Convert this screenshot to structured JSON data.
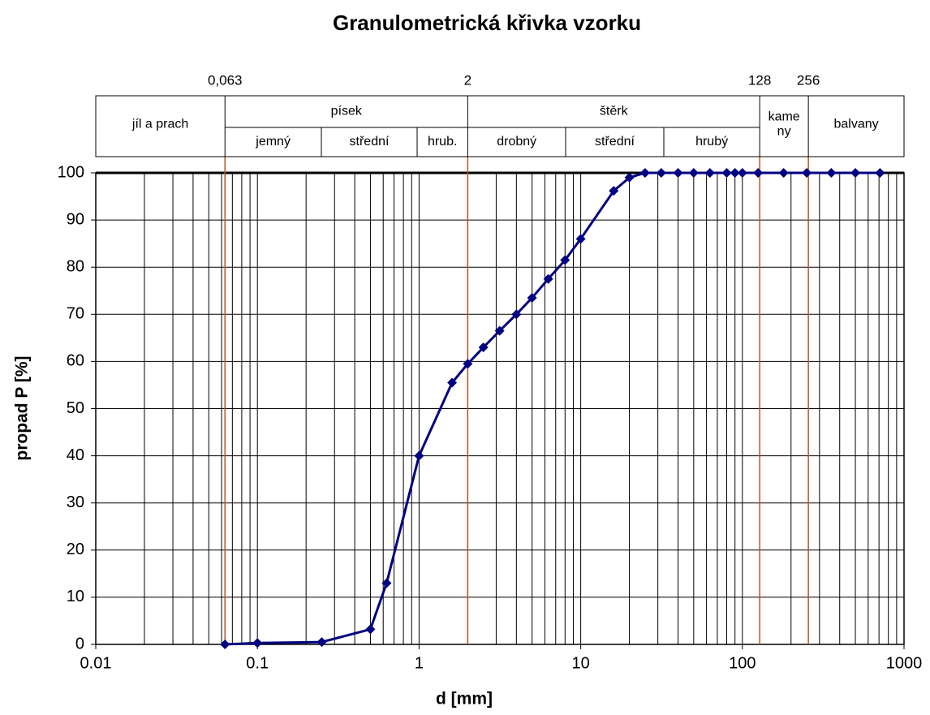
{
  "chart_data": {
    "type": "line",
    "title": "Granulometrická křivka vzorku",
    "x_label": "d [mm]",
    "y_label": "propad P [%]",
    "x": [
      0.063,
      0.1,
      0.25,
      0.5,
      0.63,
      1,
      1.6,
      2,
      2.5,
      3.15,
      4,
      5,
      6.3,
      8,
      10,
      16,
      20,
      25,
      31.5,
      40,
      50,
      63,
      80,
      90,
      100,
      125,
      180,
      250,
      355,
      500,
      710
    ],
    "values": [
      0,
      0.3,
      0.5,
      3.2,
      13,
      40,
      55.5,
      59.5,
      63,
      66.5,
      70,
      73.5,
      77.5,
      81.5,
      86,
      96.2,
      99,
      100,
      100,
      100,
      100,
      100,
      100,
      100,
      100,
      100,
      100,
      100,
      100,
      100,
      100
    ],
    "color": "#000080",
    "log_x": true,
    "xlim": [
      0.01,
      1000
    ],
    "xticks": [
      0.01,
      0.1,
      1,
      10,
      100,
      1000
    ],
    "ylim": [
      0,
      100
    ],
    "yticks": [
      0,
      10,
      20,
      30,
      40,
      50,
      60,
      70,
      80,
      90,
      100
    ],
    "grid": true,
    "classification": {
      "boundaries": [
        {
          "value": 0.063,
          "label": "0,063"
        },
        2,
        128,
        256
      ],
      "boundary_color": "#c0502b",
      "classes": [
        {
          "name": "jíl a prach"
        },
        {
          "name": "písek",
          "subclasses": [
            "jemný",
            "střední",
            "hrub."
          ]
        },
        {
          "name": "štěrk",
          "subclasses": [
            "drobný",
            "střední",
            "hrubý"
          ]
        },
        {
          "name": "kame\nny"
        },
        {
          "name": "balvany"
        }
      ]
    }
  }
}
